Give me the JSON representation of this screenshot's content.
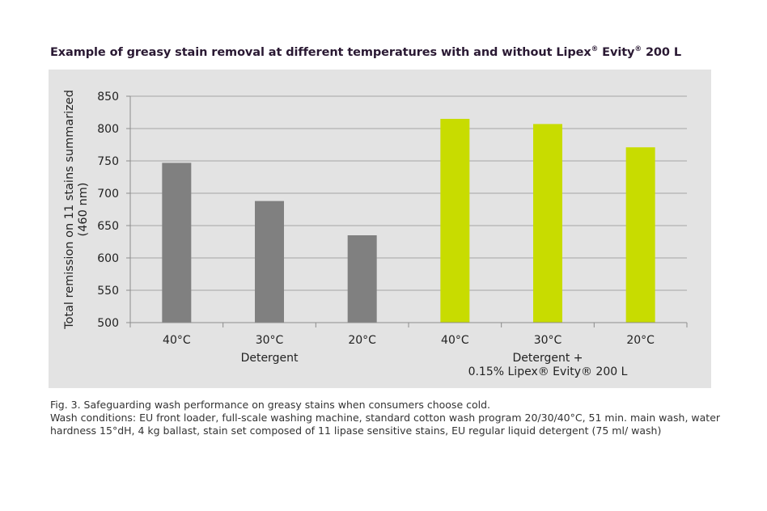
{
  "title": {
    "before": "Example of greasy stain removal at different temperatures with and without Lipex",
    "sup1": "®",
    "mid": " Evity",
    "sup2": "®",
    "after": " 200 L"
  },
  "caption": {
    "line1": "Fig. 3. Safeguarding wash performance on greasy stains when consumers choose cold.",
    "line2": "Wash conditions: EU front loader, full-scale washing machine, standard cotton wash program 20/30/40°C, 51 min. main wash, water hardness 15°dH, 4 kg ballast, stain set composed of 11 lipase sensitive stains, EU regular liquid detergent (75 ml/ wash)"
  },
  "colors": {
    "detergent": "#808080",
    "lipex": "#c8dc00",
    "grid": "#a6a6a6",
    "panel": "#e3e3e3",
    "text": "#222222"
  },
  "chart_data": {
    "type": "bar",
    "title": "Example of greasy stain removal at different temperatures with and without Lipex® Evity® 200 L",
    "ylabel": [
      "Total remission on 11 stains summarized",
      "(460 nm)"
    ],
    "xlabel": "",
    "ylim": [
      500,
      850
    ],
    "yticks": [
      500,
      550,
      600,
      650,
      700,
      750,
      800,
      850
    ],
    "grid": true,
    "categories": [
      "40°C",
      "30°C",
      "20°C",
      "40°C",
      "30°C",
      "20°C"
    ],
    "groups": [
      {
        "lines": [
          "Detergent"
        ],
        "categories": [
          0,
          1,
          2
        ]
      },
      {
        "lines": [
          "Detergent +",
          "0.15% Lipex® Evity® 200 L"
        ],
        "categories": [
          3,
          4,
          5
        ]
      }
    ],
    "series": [
      {
        "values": [
          747,
          688,
          635,
          null,
          null,
          null
        ],
        "color": "#808080"
      },
      {
        "values": [
          null,
          null,
          null,
          815,
          807,
          771
        ],
        "color": "#c8dc00"
      }
    ]
  }
}
